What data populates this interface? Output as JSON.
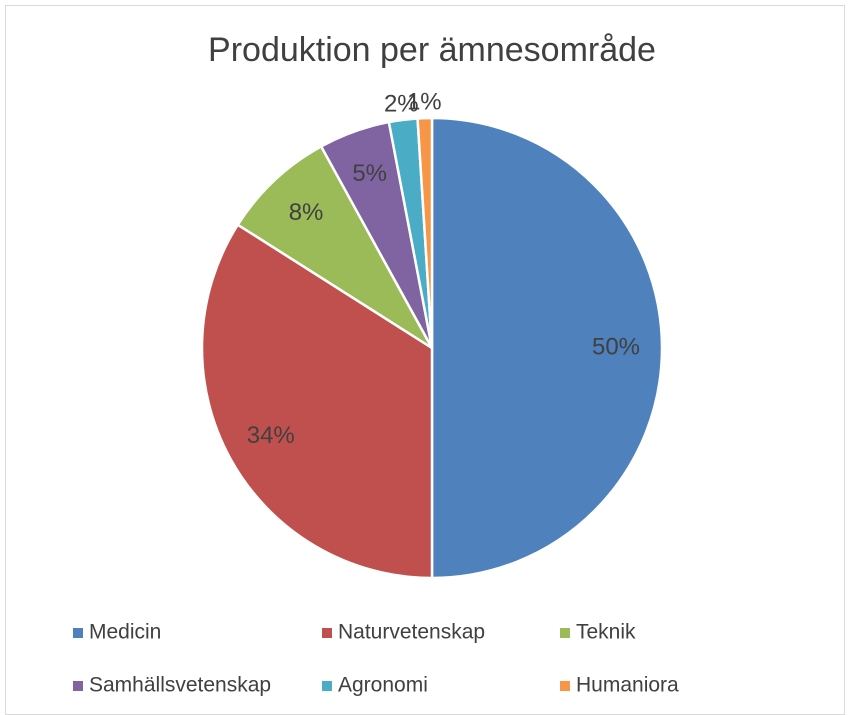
{
  "chart_data": {
    "type": "pie",
    "title": "Produktion per ämnesområde",
    "categories": [
      "Medicin",
      "Naturvetenskap",
      "Teknik",
      "Samhällsvetenskap",
      "Agronomi",
      "Humaniora"
    ],
    "values": [
      50,
      34,
      8,
      5,
      2,
      1
    ],
    "value_labels": [
      "50%",
      "34%",
      "8%",
      "5%",
      "2%",
      "1%"
    ],
    "colors": [
      "#4f81bd",
      "#c0504d",
      "#9bbb59",
      "#8064a2",
      "#4bacc6",
      "#f79646"
    ],
    "legend": "bottom"
  }
}
